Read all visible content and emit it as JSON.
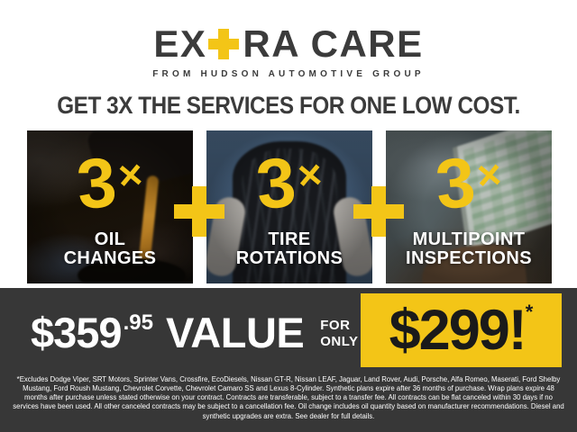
{
  "colors": {
    "brand_yellow": "#F3C517",
    "band_dark": "#373737",
    "headline_dark": "#3B3B3B",
    "price_text_black": "#1A1A1A",
    "white": "#FFFFFF"
  },
  "icons": {
    "plus": "+"
  },
  "logo": {
    "prefix": "EX",
    "suffix": "RA CARE",
    "tagline": "FROM HUDSON AUTOMOTIVE GROUP"
  },
  "headline": "GET 3X THE SERVICES FOR ONE LOW COST.",
  "services": [
    {
      "multiplier": "3",
      "times": "×",
      "label_line1": "OIL",
      "label_line2": "CHANGES",
      "photo": "oil-change-photo"
    },
    {
      "multiplier": "3",
      "times": "×",
      "label_line1": "TIRE",
      "label_line2": "ROTATIONS",
      "photo": "tire-rotation-photo"
    },
    {
      "multiplier": "3",
      "times": "×",
      "label_line1": "MULTIPOINT",
      "label_line2": "INSPECTIONS",
      "photo": "multipoint-inspection-photo"
    }
  ],
  "pricing": {
    "value_dollars": "$359",
    "value_cents": ".95",
    "value_word": "VALUE",
    "for_line1": "FOR",
    "for_line2": "ONLY",
    "price": "$299!",
    "price_asterisk": "*"
  },
  "disclaimer": "*Excludes Dodge Viper, SRT Motors, Sprinter Vans, Crossfire, EcoDiesels, Nissan GT-R, Nissan LEAF, Jaguar, Land Rover, Audi, Porsche, Alfa Romeo, Maserati, Ford Shelby Mustang, Ford Roush Mustang, Chevrolet Corvette, Chevrolet Camaro SS and Lexus 8-Cylinder. Synthetic plans expire after 36 months of purchase. Wrap plans expire 48 months after purchase unless stated otherwise on your contract. Contracts are transferable, subject to a transfer fee. All contracts can be flat canceled within 30 days if no services have been used. All other canceled contracts may be subject to a cancellation fee. Oil change includes oil quantity based on manufacturer recommendations. Diesel and synthetic upgrades are extra. See dealer for full details."
}
